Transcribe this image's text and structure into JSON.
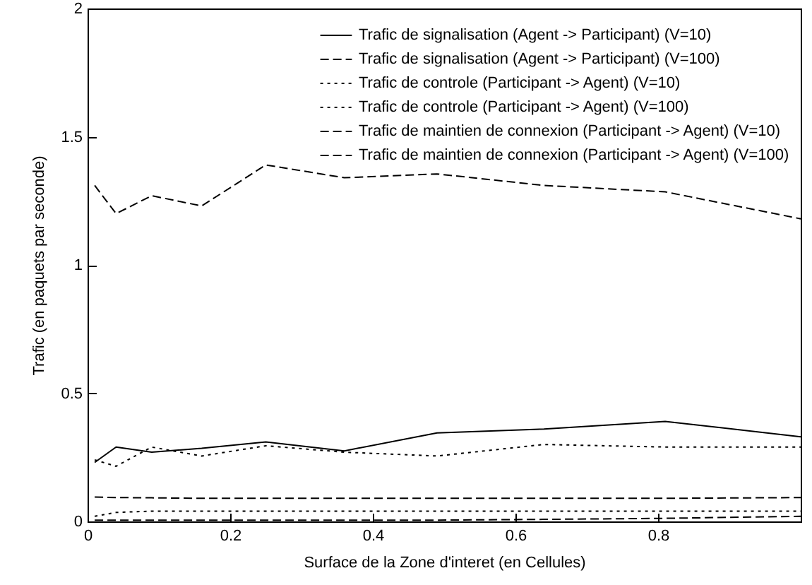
{
  "chart_data": {
    "type": "line",
    "xlabel": "Surface de la Zone d'interet (en Cellules)",
    "ylabel": "Trafic (en paquets par seconde)",
    "x": [
      0.01,
      0.04,
      0.09,
      0.16,
      0.25,
      0.36,
      0.49,
      0.64,
      0.81,
      1.0
    ],
    "xlim": [
      0,
      1
    ],
    "xticks": [
      0,
      0.2,
      0.4,
      0.6,
      0.8
    ],
    "ylim": [
      0,
      2
    ],
    "yticks": [
      0,
      0.5,
      1,
      1.5,
      2
    ],
    "grid": false,
    "legend": "top right",
    "marker": "none",
    "series": [
      {
        "name": "Trafic de signalisation (Agent -> Participant) (V=10)",
        "color": "#000000",
        "line_style": "solid",
        "values": [
          0.23,
          0.29,
          0.27,
          0.285,
          0.31,
          0.275,
          0.345,
          0.36,
          0.39,
          0.33
        ]
      },
      {
        "name": "Trafic de signalisation (Agent -> Participant) (V=100)",
        "color": "#000000",
        "line_style": "dashed",
        "values": [
          1.31,
          1.2,
          1.27,
          1.23,
          1.39,
          1.34,
          1.355,
          1.31,
          1.285,
          1.18
        ]
      },
      {
        "name": "Trafic de controle (Participant -> Agent) (V=10)",
        "color": "#000000",
        "line_style": "dotted",
        "values": [
          0.24,
          0.215,
          0.29,
          0.255,
          0.295,
          0.27,
          0.255,
          0.3,
          0.29,
          0.29
        ]
      },
      {
        "name": "Trafic de controle (Participant -> Agent) (V=100)",
        "color": "#000000",
        "line_style": "dotted",
        "values": [
          0.02,
          0.035,
          0.04,
          0.04,
          0.04,
          0.04,
          0.04,
          0.04,
          0.04,
          0.04
        ]
      },
      {
        "name": "Trafic de maintien de connexion (Participant -> Agent) (V=10)",
        "color": "#000000",
        "line_style": "dashed",
        "values": [
          0.095,
          0.093,
          0.092,
          0.09,
          0.09,
          0.09,
          0.09,
          0.09,
          0.09,
          0.093
        ]
      },
      {
        "name": "Trafic de maintien de connexion (Participant -> Agent) (V=100)",
        "color": "#000000",
        "line_style": "dashed",
        "values": [
          0.005,
          0.005,
          0.005,
          0.005,
          0.005,
          0.005,
          0.005,
          0.008,
          0.012,
          0.02
        ]
      }
    ]
  }
}
